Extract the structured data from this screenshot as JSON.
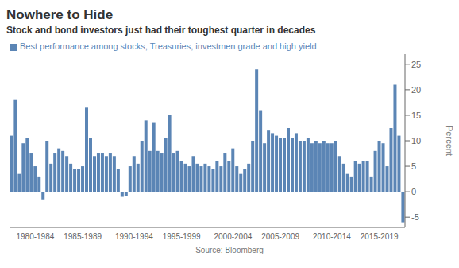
{
  "chart_data": {
    "type": "bar",
    "title": "Nowhere to Hide",
    "subtitle": "Stock and bond investors just had their toughest quarter in decades",
    "ylabel": "Percent",
    "annotations": [
      "Source: Bloomberg"
    ],
    "categories": [
      null,
      null,
      null,
      null,
      null,
      null,
      "1980-1984",
      null,
      null,
      null,
      null,
      null,
      null,
      null,
      null,
      null,
      null,
      null,
      "1985-1989",
      null,
      null,
      null,
      null,
      null,
      null,
      null,
      null,
      null,
      null,
      null,
      null,
      "1990-1994",
      null,
      null,
      null,
      null,
      null,
      null,
      null,
      null,
      null,
      null,
      null,
      "1995-1999",
      null,
      null,
      null,
      null,
      null,
      null,
      null,
      null,
      null,
      null,
      null,
      null,
      "2000-2004",
      null,
      null,
      null,
      null,
      null,
      null,
      null,
      null,
      null,
      null,
      null,
      "2005-2009",
      null,
      null,
      null,
      null,
      null,
      null,
      null,
      null,
      null,
      null,
      null,
      null,
      "2010-2014",
      null,
      null,
      null,
      null,
      null,
      null,
      null,
      null,
      null,
      null,
      null,
      "2015-2019",
      null,
      null,
      null,
      null,
      null,
      null
    ],
    "series": [
      {
        "name": "Best performance among stocks, Treasuries, investmen grade and high yield",
        "color": "#5b85b5",
        "values": [
          11.0,
          18.0,
          3.5,
          9.5,
          10.5,
          7.5,
          5.0,
          3.0,
          -1.5,
          10.0,
          5.5,
          7.5,
          8.5,
          8.0,
          7.0,
          5.5,
          4.5,
          4.5,
          5.0,
          16.5,
          10.5,
          7.0,
          7.5,
          7.5,
          7.0,
          7.5,
          7.0,
          4.5,
          -1.0,
          -0.8,
          5.0,
          7.0,
          5.5,
          10.0,
          14.0,
          8.0,
          13.5,
          8.0,
          7.5,
          10.5,
          15.0,
          7.5,
          8.0,
          6.0,
          5.5,
          5.0,
          7.0,
          5.5,
          5.0,
          5.5,
          5.0,
          4.5,
          6.0,
          5.0,
          7.5,
          6.0,
          8.5,
          5.0,
          3.5,
          4.5,
          5.5,
          10.0,
          24.0,
          16.0,
          9.5,
          12.0,
          11.5,
          11.0,
          10.5,
          10.5,
          12.5,
          10.5,
          11.5,
          10.0,
          10.0,
          10.5,
          9.5,
          10.0,
          9.5,
          10.0,
          9.5,
          9.5,
          10.0,
          7.0,
          5.5,
          3.5,
          3.0,
          6.0,
          5.5,
          6.0,
          6.0,
          3.0,
          8.0,
          10.0,
          9.5,
          5.0,
          12.5,
          21.0,
          11.0,
          -6.0
        ]
      }
    ],
    "ylim": [
      -7,
      27
    ],
    "yticks": [
      -5,
      0,
      5,
      10,
      15,
      20,
      25
    ],
    "grid": false,
    "legend": "top-left"
  }
}
